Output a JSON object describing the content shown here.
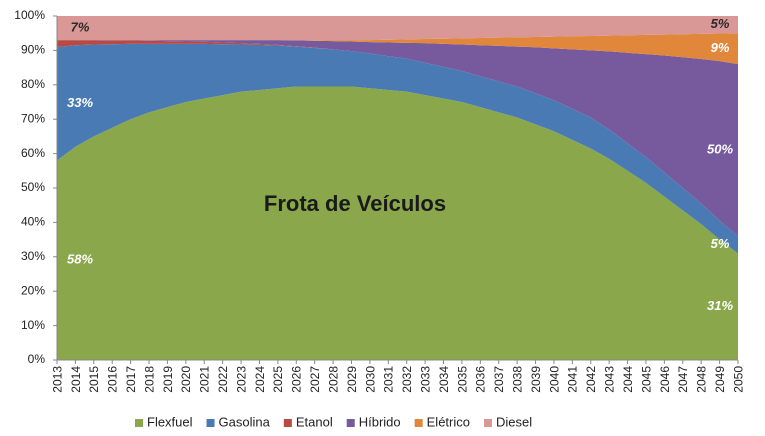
{
  "chart_data": {
    "type": "stacked_area",
    "title": "Frota de Veículos",
    "categories": [
      "2013",
      "2014",
      "2015",
      "2016",
      "2017",
      "2018",
      "2019",
      "2020",
      "2021",
      "2022",
      "2023",
      "2024",
      "2025",
      "2026",
      "2027",
      "2028",
      "2029",
      "2030",
      "2031",
      "2032",
      "2033",
      "2034",
      "2035",
      "2036",
      "2037",
      "2038",
      "2039",
      "2040",
      "2041",
      "2042",
      "2043",
      "2044",
      "2045",
      "2046",
      "2047",
      "2048",
      "2049",
      "2050"
    ],
    "ylim": [
      0,
      100
    ],
    "yticks": [
      {
        "value": 0,
        "label": "0%"
      },
      {
        "value": 10,
        "label": "10%"
      },
      {
        "value": 20,
        "label": "20%"
      },
      {
        "value": 30,
        "label": "30%"
      },
      {
        "value": 40,
        "label": "40%"
      },
      {
        "value": 50,
        "label": "50%"
      },
      {
        "value": 60,
        "label": "60%"
      },
      {
        "value": 70,
        "label": "70%"
      },
      {
        "value": 80,
        "label": "80%"
      },
      {
        "value": 90,
        "label": "90%"
      },
      {
        "value": 100,
        "label": "100%"
      }
    ],
    "grid": false,
    "legend": "bottom",
    "series": [
      {
        "name": "Flexfuel",
        "color": "#8aa84b",
        "values": [
          58,
          62,
          65,
          67.5,
          70,
          72,
          73.5,
          75,
          76,
          77,
          78,
          78.5,
          79,
          79.5,
          79.5,
          79.5,
          79.5,
          79,
          78.5,
          78,
          77,
          76,
          75,
          73.5,
          72,
          70.5,
          68.5,
          66.5,
          64,
          61.5,
          58.5,
          55,
          51.5,
          47.5,
          43.5,
          39.5,
          35,
          31
        ],
        "value_labels": [
          "58%",
          null,
          null,
          null,
          null,
          null,
          null,
          null,
          null,
          null,
          null,
          null,
          null,
          null,
          null,
          null,
          null,
          null,
          null,
          null,
          null,
          null,
          null,
          null,
          null,
          null,
          null,
          null,
          null,
          null,
          null,
          null,
          null,
          null,
          null,
          null,
          null,
          "31%"
        ]
      },
      {
        "name": "Gasolina",
        "color": "#4a7ab4",
        "values": [
          33,
          29.5,
          26.7,
          24.3,
          21.9,
          19.9,
          18.4,
          16.9,
          15.9,
          14.8,
          13.7,
          13.1,
          12.4,
          11.6,
          11.2,
          10.8,
          10.3,
          10.1,
          9.8,
          9.6,
          9.4,
          9.2,
          9,
          9,
          9,
          9,
          9,
          9,
          9,
          9,
          8.5,
          8,
          7.5,
          7,
          6.5,
          6,
          5.5,
          5
        ],
        "value_labels": [
          "33%",
          null,
          null,
          null,
          null,
          null,
          null,
          null,
          null,
          null,
          null,
          null,
          null,
          null,
          null,
          null,
          null,
          null,
          null,
          null,
          null,
          null,
          null,
          null,
          null,
          null,
          null,
          null,
          null,
          null,
          null,
          null,
          null,
          null,
          null,
          null,
          null,
          "5%"
        ]
      },
      {
        "name": "Etanol",
        "color": "#b84a45",
        "values": [
          2,
          1.5,
          1.3,
          1.1,
          1,
          0.9,
          0.8,
          0.7,
          0.6,
          0.5,
          0.4,
          0.3,
          0.2,
          0.1,
          0.1,
          0,
          0,
          0,
          0,
          0,
          0,
          0,
          0,
          0,
          0,
          0,
          0,
          0,
          0,
          0,
          0,
          0,
          0,
          0,
          0,
          0,
          0,
          0
        ]
      },
      {
        "name": "Híbrido",
        "color": "#775a9e",
        "values": [
          0,
          0,
          0,
          0.1,
          0.1,
          0.2,
          0.3,
          0.4,
          0.5,
          0.7,
          0.9,
          1.1,
          1.4,
          1.7,
          2,
          2.4,
          2.8,
          3.3,
          4,
          4.6,
          5.7,
          6.7,
          7.7,
          9,
          10.3,
          11.6,
          13.4,
          15.1,
          17.3,
          19.5,
          22.7,
          26.3,
          29.9,
          34,
          38,
          42,
          46.4,
          50
        ],
        "value_labels": [
          null,
          null,
          null,
          null,
          null,
          null,
          null,
          null,
          null,
          null,
          null,
          null,
          null,
          null,
          null,
          null,
          null,
          null,
          null,
          null,
          null,
          null,
          null,
          null,
          null,
          null,
          null,
          null,
          null,
          null,
          null,
          null,
          null,
          null,
          null,
          null,
          null,
          "50%"
        ]
      },
      {
        "name": "Elétrico",
        "color": "#e0873b",
        "values": [
          0,
          0,
          0,
          0,
          0,
          0,
          0,
          0,
          0,
          0,
          0,
          0,
          0,
          0.1,
          0.2,
          0.3,
          0.4,
          0.6,
          0.8,
          1,
          1.2,
          1.5,
          1.8,
          2.1,
          2.4,
          2.7,
          3,
          3.4,
          3.8,
          4.2,
          4.6,
          5.1,
          5.6,
          6.1,
          6.7,
          7.3,
          8,
          9
        ],
        "value_labels": [
          null,
          null,
          null,
          null,
          null,
          null,
          null,
          null,
          null,
          null,
          null,
          null,
          null,
          null,
          null,
          null,
          null,
          null,
          null,
          null,
          null,
          null,
          null,
          null,
          null,
          null,
          null,
          null,
          null,
          null,
          null,
          null,
          null,
          null,
          null,
          null,
          null,
          "9%"
        ]
      },
      {
        "name": "Diesel",
        "color": "#d99795",
        "values": [
          7,
          7,
          7,
          7,
          7,
          7,
          7,
          7,
          7,
          7,
          7,
          7,
          7,
          7,
          7,
          7,
          7,
          7,
          6.9,
          6.8,
          6.7,
          6.6,
          6.5,
          6.4,
          6.3,
          6.2,
          6.1,
          6,
          5.9,
          5.8,
          5.7,
          5.6,
          5.5,
          5.4,
          5.3,
          5.2,
          5.1,
          5
        ],
        "value_labels": [
          "7%",
          null,
          null,
          null,
          null,
          null,
          null,
          null,
          null,
          null,
          null,
          null,
          null,
          null,
          null,
          null,
          null,
          null,
          null,
          null,
          null,
          null,
          null,
          null,
          null,
          null,
          null,
          null,
          null,
          null,
          null,
          null,
          null,
          null,
          null,
          null,
          null,
          "5%"
        ]
      }
    ]
  }
}
